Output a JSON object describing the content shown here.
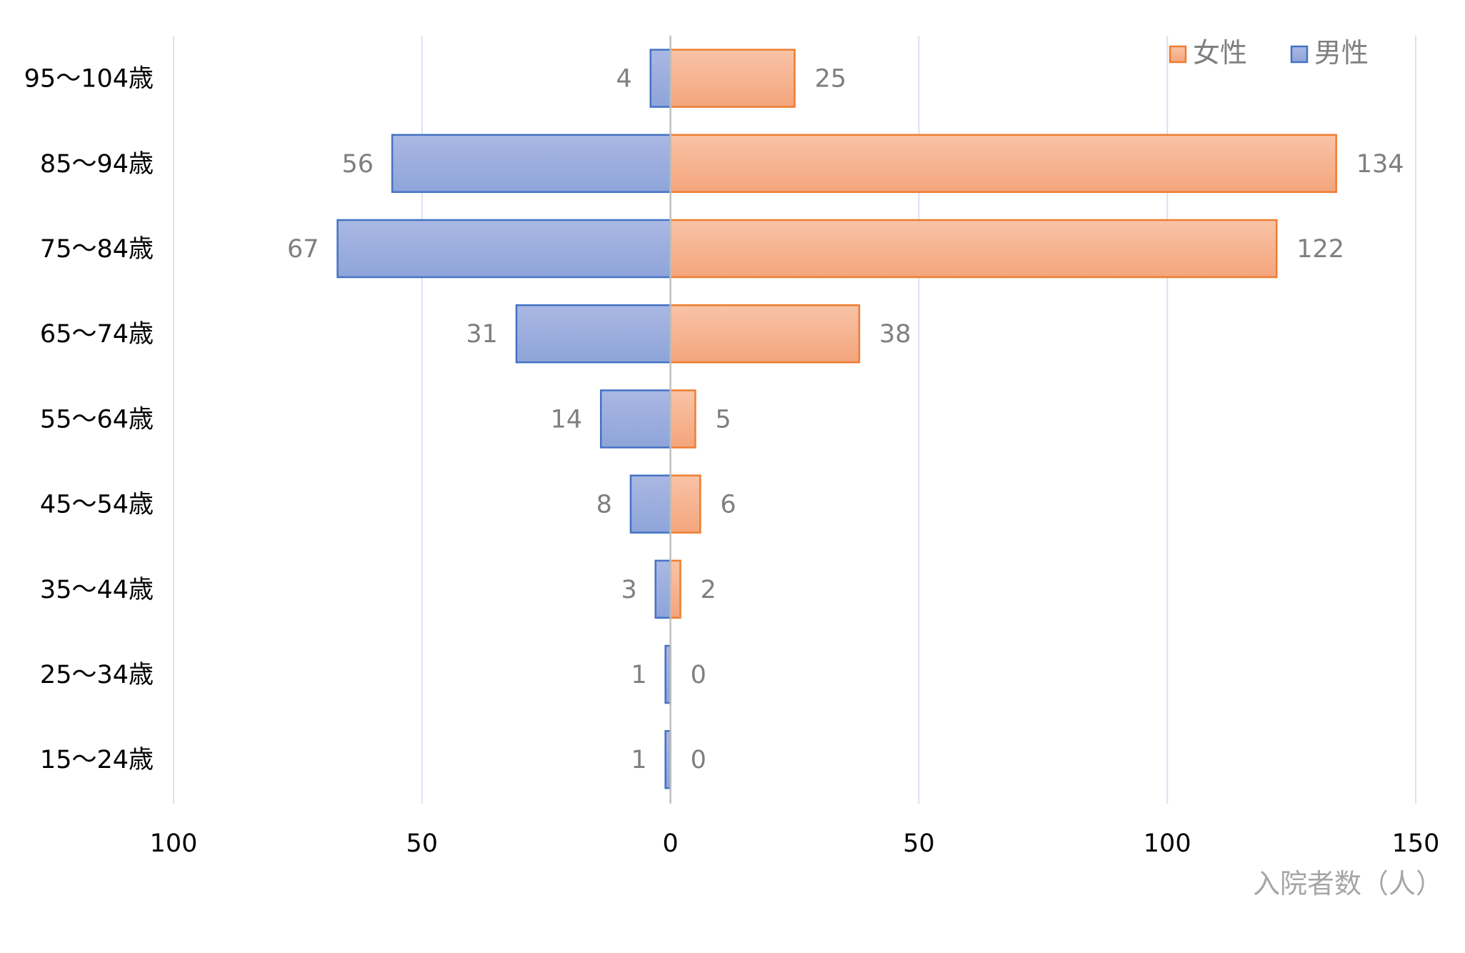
{
  "chart_data": {
    "type": "bar",
    "orientation": "horizontal-diverging",
    "categories": [
      "95〜104歳",
      "85〜94歳",
      "75〜84歳",
      "65〜74歳",
      "55〜64歳",
      "45〜54歳",
      "35〜44歳",
      "25〜34歳",
      "15〜24歳"
    ],
    "series": [
      {
        "name": "男性",
        "side": "left",
        "color": "#4472c4",
        "fill_light": "#aab8e3",
        "fill_dark": "#8ea4d9",
        "values": [
          4,
          56,
          67,
          31,
          14,
          8,
          3,
          1,
          1
        ]
      },
      {
        "name": "女性",
        "side": "right",
        "color": "#ed7d31",
        "fill_light": "#f8c3a7",
        "fill_dark": "#f4a57c",
        "values": [
          25,
          134,
          122,
          38,
          5,
          6,
          2,
          0,
          0
        ]
      }
    ],
    "x_ticks": [
      -100,
      -50,
      0,
      50,
      100,
      150
    ],
    "x_tick_labels": [
      "100",
      "50",
      "0",
      "50",
      "100",
      "150"
    ],
    "xlim": [
      -100,
      150
    ],
    "xlabel": "入院者数（人）",
    "title": "",
    "ylabel": "",
    "grid": "vertical",
    "gridline_color": "#dae3f3",
    "axis_color": "#bfbfbf",
    "legend": {
      "placement": "top-right",
      "order": [
        "女性",
        "男性"
      ]
    }
  }
}
